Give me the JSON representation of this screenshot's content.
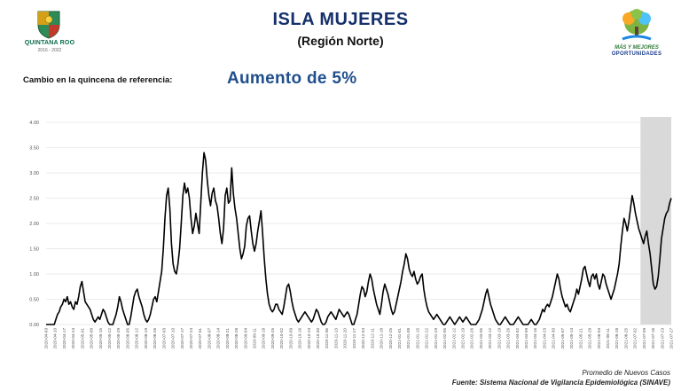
{
  "header": {
    "title": "ISLA MUJERES",
    "subtitle": "(Región Norte)",
    "change_label": "Cambio en la quincena de referencia:",
    "change_value": "Aumento de 5%"
  },
  "logo_left": {
    "name": "QUINTANA ROO",
    "years": "2016 - 2022"
  },
  "logo_right": {
    "line1": "MÁS Y MEJORES",
    "line2": "OPORTUNIDADES"
  },
  "footer": {
    "caption": "Promedio de Nuevos Casos",
    "source": "Fuente: Sistema Nacional de Vigilancia Epidemiológica (SINAVE)"
  },
  "colors": {
    "line": "#000000",
    "grid": "#e4e4e4",
    "shade": "#d9d9d9",
    "title": "#15306b",
    "accent": "#1f4e8c"
  },
  "chart_data": {
    "type": "line",
    "ylim": [
      0,
      4
    ],
    "yticks": [
      "0.00",
      "0.50",
      "1.00",
      "1.50",
      "2.00",
      "2.50",
      "3.00",
      "3.50",
      "4.00"
    ],
    "grid": true,
    "legend": "none",
    "shaded_range": [
      "2021-07-09",
      "2021-07-27"
    ],
    "x_labels": [
      "2020-04-03",
      "2020-04-10",
      "2020-04-17",
      "2020-04-24",
      "2020-05-01",
      "2020-05-08",
      "2020-05-15",
      "2020-05-22",
      "2020-05-29",
      "2020-06-05",
      "2020-06-12",
      "2020-06-19",
      "2020-06-26",
      "2020-07-03",
      "2020-07-10",
      "2020-07-17",
      "2020-07-24",
      "2020-07-31",
      "2020-08-07",
      "2020-08-14",
      "2020-08-21",
      "2020-08-28",
      "2020-09-04",
      "2020-09-11",
      "2020-09-18",
      "2020-09-25",
      "2020-10-02",
      "2020-10-09",
      "2020-10-16",
      "2020-10-23",
      "2020-10-30",
      "2020-11-06",
      "2020-11-13",
      "2020-11-20",
      "2020-11-27",
      "2020-12-04",
      "2020-12-11",
      "2020-12-18",
      "2020-12-25",
      "2021-01-01",
      "2021-01-08",
      "2021-01-15",
      "2021-01-22",
      "2021-01-29",
      "2021-02-05",
      "2021-02-12",
      "2021-02-19",
      "2021-02-26",
      "2021-03-05",
      "2021-03-12",
      "2021-03-19",
      "2021-03-26",
      "2021-04-02",
      "2021-04-09",
      "2021-04-16",
      "2021-04-23",
      "2021-04-30",
      "2021-05-07",
      "2021-05-14",
      "2021-05-21",
      "2021-05-28",
      "2021-06-04",
      "2021-06-11",
      "2021-06-18",
      "2021-06-25",
      "2021-07-02",
      "2021-07-09",
      "2021-07-16",
      "2021-07-23",
      "2021-07-27"
    ],
    "series": [
      {
        "values": [
          0.0,
          0.0,
          0.0,
          0.0,
          0.0,
          0.0,
          0.1,
          0.2,
          0.25,
          0.35,
          0.4,
          0.5,
          0.45,
          0.55,
          0.4,
          0.45,
          0.35,
          0.3,
          0.45,
          0.4,
          0.55,
          0.75,
          0.85,
          0.65,
          0.45,
          0.4,
          0.35,
          0.3,
          0.2,
          0.1,
          0.05,
          0.1,
          0.15,
          0.1,
          0.2,
          0.3,
          0.25,
          0.15,
          0.05,
          0.0,
          0.0,
          0.0,
          0.1,
          0.2,
          0.35,
          0.55,
          0.45,
          0.3,
          0.2,
          0.1,
          0.0,
          0.0,
          0.15,
          0.35,
          0.55,
          0.65,
          0.7,
          0.55,
          0.45,
          0.35,
          0.2,
          0.1,
          0.05,
          0.1,
          0.2,
          0.35,
          0.5,
          0.55,
          0.45,
          0.65,
          0.85,
          1.05,
          1.5,
          2.1,
          2.55,
          2.7,
          2.3,
          1.6,
          1.2,
          1.05,
          1.0,
          1.2,
          1.5,
          2.0,
          2.55,
          2.8,
          2.6,
          2.7,
          2.5,
          2.1,
          1.8,
          1.95,
          2.2,
          2.0,
          1.8,
          2.4,
          3.0,
          3.4,
          3.25,
          2.85,
          2.55,
          2.35,
          2.6,
          2.7,
          2.45,
          2.35,
          2.1,
          1.8,
          1.6,
          1.9,
          2.55,
          2.7,
          2.4,
          2.45,
          3.1,
          2.6,
          2.3,
          2.1,
          1.8,
          1.5,
          1.3,
          1.4,
          1.55,
          1.95,
          2.1,
          2.15,
          1.85,
          1.6,
          1.45,
          1.6,
          1.85,
          2.05,
          2.25,
          1.8,
          1.3,
          0.9,
          0.6,
          0.4,
          0.3,
          0.25,
          0.3,
          0.4,
          0.4,
          0.3,
          0.25,
          0.2,
          0.35,
          0.55,
          0.75,
          0.8,
          0.65,
          0.45,
          0.3,
          0.2,
          0.1,
          0.05,
          0.1,
          0.15,
          0.2,
          0.25,
          0.2,
          0.15,
          0.1,
          0.05,
          0.1,
          0.2,
          0.3,
          0.25,
          0.15,
          0.05,
          0.0,
          0.0,
          0.05,
          0.15,
          0.2,
          0.25,
          0.2,
          0.15,
          0.1,
          0.2,
          0.3,
          0.25,
          0.2,
          0.15,
          0.2,
          0.25,
          0.2,
          0.1,
          0.0,
          0.0,
          0.1,
          0.2,
          0.4,
          0.6,
          0.75,
          0.7,
          0.55,
          0.65,
          0.85,
          1.0,
          0.9,
          0.7,
          0.55,
          0.4,
          0.3,
          0.2,
          0.4,
          0.65,
          0.8,
          0.7,
          0.6,
          0.45,
          0.3,
          0.2,
          0.25,
          0.4,
          0.55,
          0.7,
          0.85,
          1.05,
          1.2,
          1.4,
          1.3,
          1.1,
          1.0,
          0.95,
          1.05,
          0.9,
          0.8,
          0.85,
          0.95,
          1.0,
          0.7,
          0.5,
          0.35,
          0.25,
          0.2,
          0.15,
          0.1,
          0.15,
          0.2,
          0.15,
          0.1,
          0.05,
          0.0,
          0.0,
          0.05,
          0.1,
          0.15,
          0.1,
          0.05,
          0.0,
          0.05,
          0.1,
          0.15,
          0.1,
          0.05,
          0.1,
          0.15,
          0.1,
          0.05,
          0.0,
          0.0,
          0.0,
          0.0,
          0.05,
          0.1,
          0.2,
          0.3,
          0.45,
          0.6,
          0.7,
          0.55,
          0.4,
          0.3,
          0.2,
          0.1,
          0.05,
          0.0,
          0.0,
          0.05,
          0.1,
          0.15,
          0.1,
          0.05,
          0.0,
          0.0,
          0.0,
          0.05,
          0.1,
          0.15,
          0.1,
          0.05,
          0.0,
          0.0,
          0.0,
          0.0,
          0.05,
          0.1,
          0.05,
          0.0,
          0.0,
          0.05,
          0.1,
          0.2,
          0.3,
          0.25,
          0.35,
          0.4,
          0.35,
          0.45,
          0.55,
          0.7,
          0.85,
          1.0,
          0.9,
          0.7,
          0.55,
          0.45,
          0.35,
          0.4,
          0.3,
          0.25,
          0.35,
          0.45,
          0.55,
          0.7,
          0.6,
          0.75,
          0.9,
          1.1,
          1.15,
          1.0,
          0.85,
          0.75,
          0.95,
          1.0,
          0.9,
          1.0,
          0.8,
          0.7,
          0.85,
          1.0,
          0.95,
          0.8,
          0.7,
          0.6,
          0.5,
          0.6,
          0.7,
          0.85,
          1.0,
          1.2,
          1.55,
          1.85,
          2.1,
          2.0,
          1.85,
          2.05,
          2.3,
          2.55,
          2.4,
          2.2,
          2.05,
          1.9,
          1.8,
          1.7,
          1.6,
          1.75,
          1.85,
          1.6,
          1.4,
          1.1,
          0.8,
          0.7,
          0.75,
          0.95,
          1.3,
          1.7,
          1.9,
          2.1,
          2.2,
          2.25,
          2.4,
          2.5
        ]
      }
    ]
  }
}
